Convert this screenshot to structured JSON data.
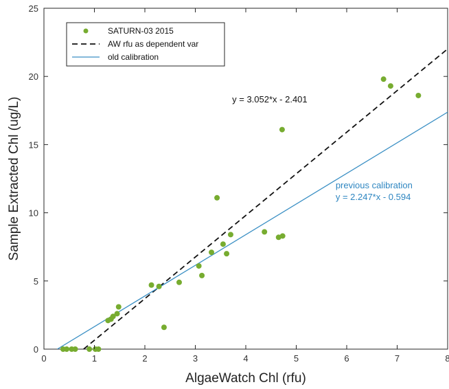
{
  "chart_data": {
    "type": "scatter",
    "xlabel": "AlgaeWatch Chl (rfu)",
    "ylabel": "Sample Extracted Chl (ug/L)",
    "xlim": [
      0,
      8
    ],
    "ylim": [
      0,
      25
    ],
    "xticks": [
      "0",
      "1",
      "2",
      "3",
      "4",
      "5",
      "6",
      "7",
      "8"
    ],
    "yticks": [
      "0",
      "5",
      "10",
      "15",
      "20",
      "25"
    ],
    "grid": false,
    "legend_position": "top-left",
    "series": [
      {
        "name": "SATURN-03 2015",
        "kind": "points",
        "color": "#77ac30",
        "points": [
          [
            0.38,
            0.0
          ],
          [
            0.45,
            0.0
          ],
          [
            0.55,
            0.0
          ],
          [
            0.62,
            0.0
          ],
          [
            0.9,
            0.0
          ],
          [
            1.02,
            0.0
          ],
          [
            1.08,
            0.0
          ],
          [
            1.27,
            2.1
          ],
          [
            1.33,
            2.2
          ],
          [
            1.37,
            2.4
          ],
          [
            1.45,
            2.6
          ],
          [
            1.48,
            3.1
          ],
          [
            2.13,
            4.7
          ],
          [
            2.28,
            4.6
          ],
          [
            2.38,
            1.6
          ],
          [
            2.68,
            4.9
          ],
          [
            3.07,
            6.1
          ],
          [
            3.13,
            5.4
          ],
          [
            3.32,
            7.1
          ],
          [
            3.43,
            11.1
          ],
          [
            3.55,
            7.7
          ],
          [
            3.62,
            7.0
          ],
          [
            3.7,
            8.4
          ],
          [
            4.37,
            8.6
          ],
          [
            4.65,
            8.2
          ],
          [
            4.73,
            8.3
          ],
          [
            4.72,
            16.1
          ],
          [
            6.73,
            19.8
          ],
          [
            6.87,
            19.3
          ],
          [
            7.42,
            18.6
          ]
        ]
      },
      {
        "name": "AW rfu as dependent var",
        "kind": "line",
        "style": "dashed",
        "color": "#111111",
        "slope": 3.052,
        "intercept": -2.401
      },
      {
        "name": "old calibration",
        "kind": "line",
        "style": "solid",
        "color": "#3a8fc4",
        "slope": 2.247,
        "intercept": -0.594
      }
    ],
    "annotations": [
      {
        "lines": [
          "y = 3.052*x - 2.401"
        ],
        "x": 3.73,
        "y": 18.1,
        "color": "#111111"
      },
      {
        "lines": [
          "previous calibration",
          "y = 2.247*x - 0.594"
        ],
        "x": 5.78,
        "y": 11.8,
        "color": "#2e86c1"
      }
    ]
  }
}
